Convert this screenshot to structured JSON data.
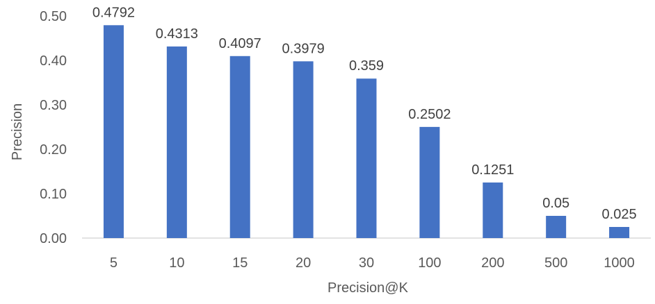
{
  "chart_data": {
    "type": "bar",
    "title": "",
    "xlabel": "Precision@K",
    "ylabel": "Precision",
    "categories": [
      "5",
      "10",
      "15",
      "20",
      "30",
      "100",
      "200",
      "500",
      "1000"
    ],
    "values": [
      0.4792,
      0.4313,
      0.4097,
      0.3979,
      0.359,
      0.2502,
      0.1251,
      0.05,
      0.025
    ],
    "data_labels": [
      "0.4792",
      "0.4313",
      "0.4097",
      "0.3979",
      "0.359",
      "0.2502",
      "0.1251",
      "0.05",
      "0.025"
    ],
    "y_ticks": [
      "0.00",
      "0.10",
      "0.20",
      "0.30",
      "0.40",
      "0.50"
    ],
    "ylim": [
      0,
      0.5
    ],
    "grid": false,
    "legend": "none",
    "bar_color": "#4472c4"
  }
}
